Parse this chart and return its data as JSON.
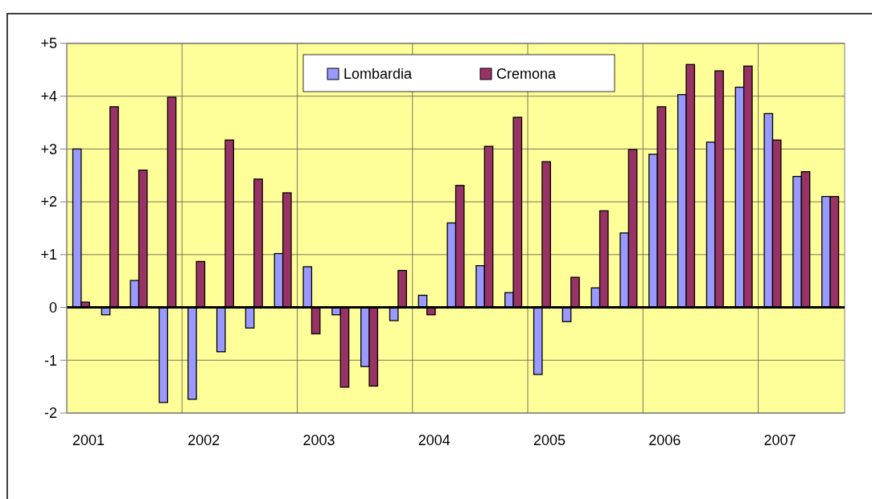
{
  "chart_data": {
    "type": "bar",
    "categories": [
      "2001",
      null,
      null,
      null,
      "2002",
      null,
      null,
      null,
      "2003",
      null,
      null,
      null,
      "2004",
      null,
      null,
      null,
      "2005",
      null,
      null,
      null,
      "2006",
      null,
      null,
      null,
      "2007",
      null,
      null
    ],
    "series": [
      {
        "name": "Lombardia",
        "color": "#9999ff",
        "values": [
          3.0,
          -0.14,
          0.51,
          -1.8,
          -1.74,
          -0.84,
          -0.39,
          1.02,
          0.77,
          -0.14,
          -1.12,
          -0.25,
          0.23,
          1.6,
          0.79,
          0.28,
          -1.27,
          -0.27,
          0.37,
          1.41,
          2.9,
          4.03,
          3.13,
          4.17,
          3.67,
          2.48,
          2.1
        ]
      },
      {
        "name": "Cremona",
        "color": "#993366",
        "values": [
          0.1,
          3.8,
          2.6,
          3.98,
          0.87,
          3.17,
          2.43,
          2.17,
          -0.5,
          -1.51,
          -1.49,
          0.7,
          -0.14,
          2.31,
          3.05,
          3.6,
          2.76,
          0.57,
          1.83,
          2.99,
          3.8,
          4.6,
          4.48,
          4.57,
          3.17,
          2.57,
          2.1
        ]
      }
    ],
    "ylim": [
      -2,
      5
    ],
    "yticks": [
      {
        "value": 5,
        "label": "+5"
      },
      {
        "value": 4,
        "label": "+4"
      },
      {
        "value": 3,
        "label": "+3"
      },
      {
        "value": 2,
        "label": "+2"
      },
      {
        "value": 1,
        "label": "+1"
      },
      0,
      -1,
      -2
    ],
    "grid": true,
    "legend": "top"
  }
}
